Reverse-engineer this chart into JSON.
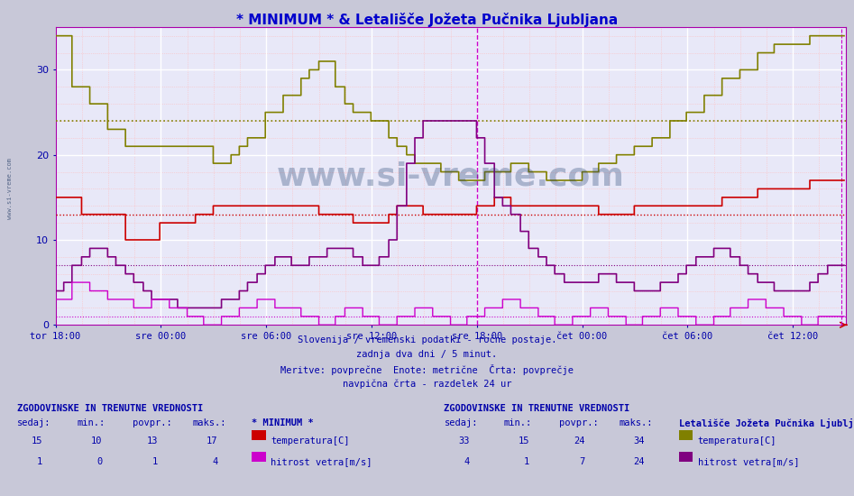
{
  "title": "* MINIMUM * & Letališče Jožeta Pučnika Ljubljana",
  "title_color": "#0000cc",
  "fig_bg_color": "#c8c8d8",
  "plot_bg_color": "#e8e8f8",
  "ylim": [
    0,
    35
  ],
  "yticks": [
    0,
    10,
    20,
    30
  ],
  "x_labels": [
    "tor 18:00",
    "sre 00:00",
    "sre 06:00",
    "sre 12:00",
    "sre 18:00",
    "čet 00:00",
    "čet 06:00",
    "čet 12:00"
  ],
  "subtitle_lines": [
    "Slovenija / vremenski podatki - ročne postaje.",
    "zadnja dva dni / 5 minut.",
    "Meritve: povprečne  Enote: metrične  Črta: povprečje",
    "navpična črta - razdelek 24 ur"
  ],
  "subtitle_color": "#0000aa",
  "watermark": "www.si-vreme.com",
  "watermark_color": "#1a3a6b",
  "section1_title": "ZGODOVINSKE IN TRENUTNE VREDNOSTI",
  "section1_headers": [
    "sedaj:",
    "min.:",
    "povpr.:",
    "maks.:"
  ],
  "section1_station": "* MINIMUM *",
  "section1_rows": [
    {
      "vals": [
        15,
        10,
        13,
        17
      ],
      "color": "#cc0000",
      "label": "temperatura[C]"
    },
    {
      "vals": [
        1,
        0,
        1,
        4
      ],
      "color": "#cc00cc",
      "label": "hitrost vetra[m/s]"
    }
  ],
  "section2_title": "ZGODOVINSKE IN TRENUTNE VREDNOSTI",
  "section2_headers": [
    "sedaj:",
    "min.:",
    "povpr.:",
    "maks.:"
  ],
  "section2_station": "Letališče Jožeta Pučnika Ljubljana",
  "section2_rows": [
    {
      "vals": [
        33,
        15,
        24,
        34
      ],
      "color": "#808000",
      "label": "temperatura[C]"
    },
    {
      "vals": [
        4,
        1,
        7,
        24
      ],
      "color": "#800080",
      "label": "hitrost vetra[m/s]"
    }
  ],
  "hline_min_temp": 13,
  "hline_letal_temp": 24,
  "hline_min_wind": 1,
  "hline_letal_wind": 7,
  "n_points": 576,
  "tick_hours": [
    0,
    6,
    12,
    18,
    24,
    30,
    36,
    42
  ],
  "total_hours": 45
}
